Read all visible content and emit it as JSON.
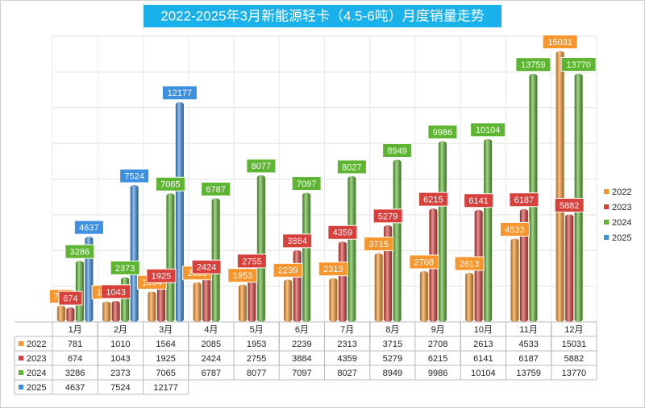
{
  "chart_data": {
    "type": "bar",
    "title": "2022-2025年3月新能源轻卡（4.5-6吨）月度销量走势",
    "categories": [
      "1月",
      "2月",
      "3月",
      "4月",
      "5月",
      "6月",
      "7月",
      "8月",
      "9月",
      "10月",
      "11月",
      "12月"
    ],
    "series": [
      {
        "name": "2022",
        "color": "#f7962c",
        "values": [
          781,
          1010,
          1564,
          2085,
          1953,
          2239,
          2313,
          3715,
          2708,
          2613,
          4533,
          15031
        ]
      },
      {
        "name": "2023",
        "color": "#d8403b",
        "values": [
          674,
          1043,
          1925,
          2424,
          2755,
          3884,
          4359,
          5279,
          6215,
          6141,
          6187,
          5882
        ]
      },
      {
        "name": "2024",
        "color": "#5db532",
        "values": [
          3286,
          2373,
          7065,
          6787,
          8077,
          7097,
          8027,
          8949,
          9986,
          10104,
          13759,
          13770
        ]
      },
      {
        "name": "2025",
        "color": "#3f8fe0",
        "values": [
          4637,
          7524,
          12177,
          null,
          null,
          null,
          null,
          null,
          null,
          null,
          null,
          null
        ]
      }
    ],
    "ylim": [
      0,
      16000
    ],
    "yticks": [
      0,
      2000,
      4000,
      6000,
      8000,
      10000,
      12000,
      14000,
      16000
    ],
    "grid": true,
    "legend": "right"
  }
}
